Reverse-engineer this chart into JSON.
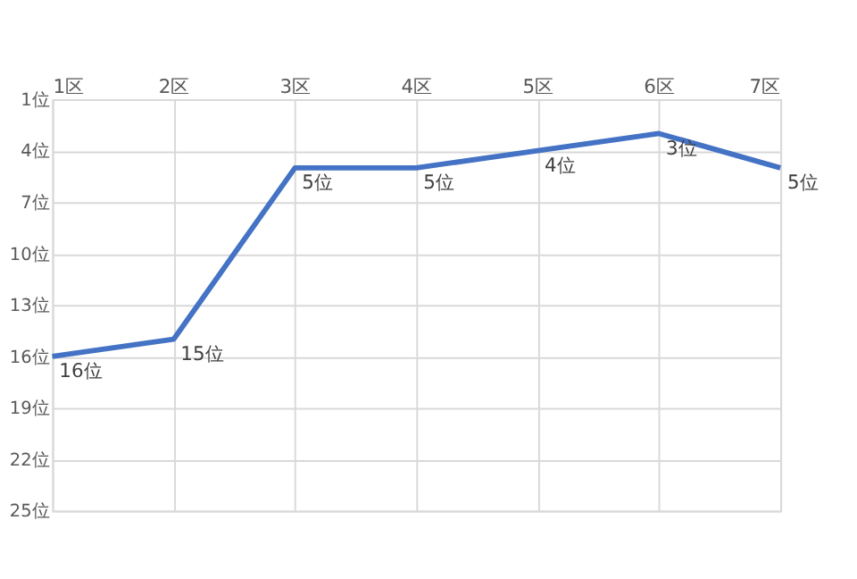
{
  "chart_data": {
    "type": "line",
    "categories": [
      "1区",
      "2区",
      "3区",
      "4区",
      "5区",
      "6区",
      "7区"
    ],
    "series": [
      {
        "color": "#4472c4",
        "values": [
          16,
          15,
          5,
          5,
          4,
          3,
          5
        ],
        "value_labels": [
          "16位",
          "15位",
          "5位",
          "5位",
          "4位",
          "3位",
          "5位"
        ]
      }
    ],
    "ylim": [
      25,
      1
    ],
    "yticks": [
      {
        "value": 1,
        "label": "1位"
      },
      {
        "value": 4,
        "label": "4位"
      },
      {
        "value": 7,
        "label": "7位"
      },
      {
        "value": 10,
        "label": "10位"
      },
      {
        "value": 13,
        "label": "13位"
      },
      {
        "value": 16,
        "label": "16位"
      },
      {
        "value": 19,
        "label": "19位"
      },
      {
        "value": 22,
        "label": "22位"
      },
      {
        "value": 25,
        "label": "25位"
      }
    ],
    "grid": true,
    "legend": false,
    "marker": "none",
    "line_style": "solid"
  }
}
